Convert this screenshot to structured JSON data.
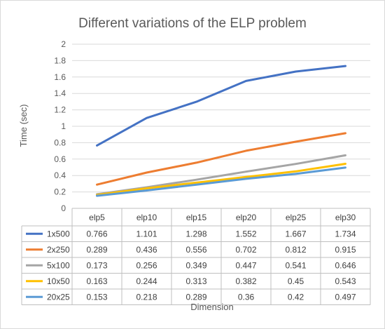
{
  "chart_data": {
    "type": "line",
    "title": "Different variations of the ELP problem",
    "xlabel": "Dimension",
    "ylabel": "Time (sec)",
    "categories": [
      "elp5",
      "elp10",
      "elp15",
      "elp20",
      "elp25",
      "elp30"
    ],
    "ylim": [
      0,
      2
    ],
    "y_ticks": [
      "0",
      "0.2",
      "0.4",
      "0.6",
      "0.8",
      "1",
      "1.2",
      "1.4",
      "1.6",
      "1.8",
      "2"
    ],
    "grid": true,
    "legend": "data-table-below",
    "series": [
      {
        "name": "1x500",
        "color": "#4472c4",
        "values": [
          0.766,
          1.101,
          1.298,
          1.552,
          1.667,
          1.734
        ],
        "labels": [
          "0.766",
          "1.101",
          "1.298",
          "1.552",
          "1.667",
          "1.734"
        ]
      },
      {
        "name": "2x250",
        "color": "#ed7d31",
        "values": [
          0.289,
          0.436,
          0.556,
          0.702,
          0.812,
          0.915
        ],
        "labels": [
          "0.289",
          "0.436",
          "0.556",
          "0.702",
          "0.812",
          "0.915"
        ]
      },
      {
        "name": "5x100",
        "color": "#a5a5a5",
        "values": [
          0.173,
          0.256,
          0.349,
          0.447,
          0.541,
          0.646
        ],
        "labels": [
          "0.173",
          "0.256",
          "0.349",
          "0.447",
          "0.541",
          "0.646"
        ]
      },
      {
        "name": "10x50",
        "color": "#ffc000",
        "values": [
          0.163,
          0.244,
          0.313,
          0.382,
          0.45,
          0.543
        ],
        "labels": [
          "0.163",
          "0.244",
          "0.313",
          "0.382",
          "0.45",
          "0.543"
        ]
      },
      {
        "name": "20x25",
        "color": "#5b9bd5",
        "values": [
          0.153,
          0.218,
          0.289,
          0.36,
          0.42,
          0.497
        ],
        "labels": [
          "0.153",
          "0.218",
          "0.289",
          "0.36",
          "0.42",
          "0.497"
        ]
      }
    ]
  }
}
